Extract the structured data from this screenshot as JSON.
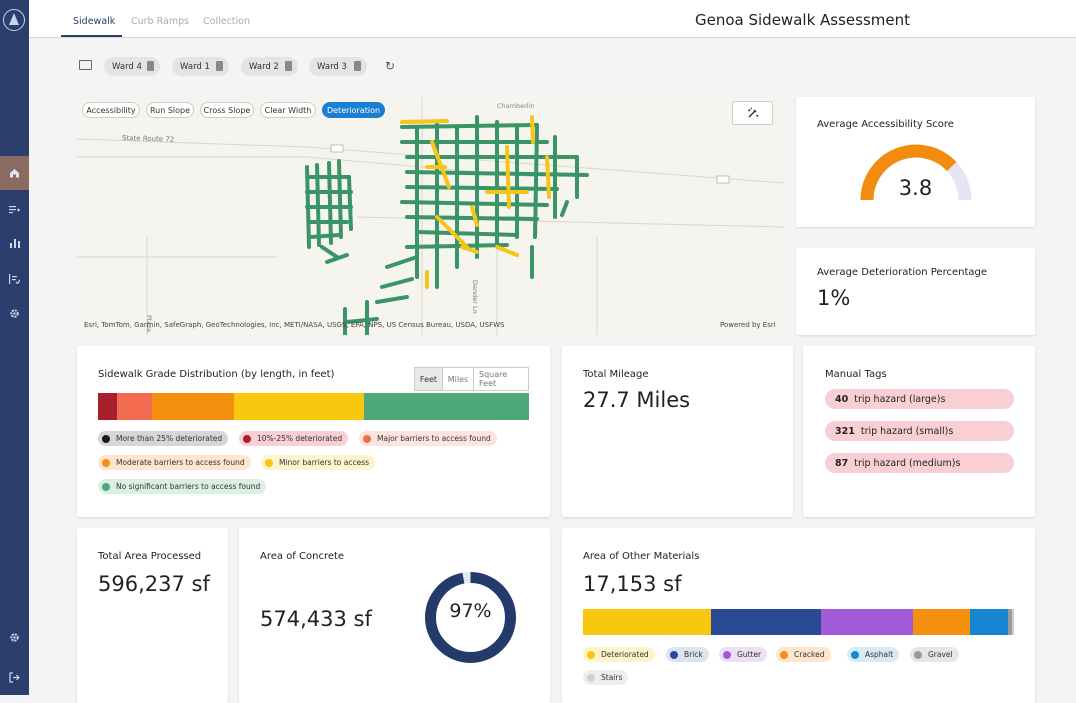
{
  "app": {
    "title": "Genoa Sidewalk Assessment"
  },
  "tabs": [
    {
      "label": "Sidewalk",
      "active": true
    },
    {
      "label": "Curb Ramps",
      "active": false
    },
    {
      "label": "Collection",
      "active": false
    }
  ],
  "sidebar": {
    "items": [
      {
        "icon": "home-icon",
        "active": true
      },
      {
        "icon": "playlist-add-icon",
        "active": false
      },
      {
        "icon": "bar-chart-icon",
        "active": false
      },
      {
        "icon": "checklist-icon",
        "active": false
      },
      {
        "icon": "settings-gear-icon",
        "active": false
      }
    ],
    "bottom": [
      {
        "icon": "settings-icon"
      },
      {
        "icon": "logout-icon"
      }
    ]
  },
  "filters": {
    "chips": [
      "Ward 4",
      "Ward 1",
      "Ward 2",
      "Ward 3"
    ]
  },
  "map": {
    "layers": [
      {
        "label": "Accessibility",
        "active": false
      },
      {
        "label": "Run Slope",
        "active": false
      },
      {
        "label": "Cross Slope",
        "active": false
      },
      {
        "label": "Clear Width",
        "active": false
      },
      {
        "label": "Deterioration",
        "active": true
      }
    ],
    "road_label": "State Route 72",
    "street_labels": [
      "Plaza",
      "Dander Ln",
      "Chamberlin"
    ],
    "attribution": "Esri, TomTom, Garmin, SafeGraph, GeoTechnologies, Inc, METI/NASA, USGS, EPA, NPS, US Census Bureau, USDA, USFWS",
    "powered_by": "Powered by Esri",
    "colors": {
      "good": "#3b9465",
      "minor": "#f5c518",
      "background": "#f6f4ef"
    }
  },
  "accessibility": {
    "label": "Average Accessibility Score",
    "value": "3.8",
    "score": 3.8,
    "max": 5,
    "color": "#f28c0f",
    "track_color": "#e4e6f5"
  },
  "deterioration": {
    "label": "Average Deterioration Percentage",
    "value": "1%"
  },
  "grade": {
    "title": "Sidewalk Grade Distribution (by length, in feet)",
    "units": [
      {
        "label": "Feet",
        "active": true
      },
      {
        "label": "Miles",
        "active": false
      },
      {
        "label": "Square Feet",
        "active": false
      }
    ],
    "segments": [
      {
        "label": "More than 25% deteriorated",
        "color": "#1a1a1a",
        "share": 0.0
      },
      {
        "label": "10%-25% deteriorated",
        "color": "#a8202c",
        "share": 0.043
      },
      {
        "label": "Major barriers to access found",
        "color": "#f26b50",
        "share": 0.083
      },
      {
        "label": "Moderate barriers to access found",
        "color": "#f5900f",
        "share": 0.19
      },
      {
        "label": "Minor barriers to access",
        "color": "#f9c80e",
        "share": 0.302
      },
      {
        "label": "No significant barriers to access found",
        "color": "#4fa878",
        "share": 0.382
      }
    ],
    "legend_backgrounds": [
      "#d6d6d6",
      "#f7d0d4",
      "#fde5df",
      "#fde6cc",
      "#fdf4cc",
      "#dcefe3"
    ]
  },
  "mileage": {
    "label": "Total Mileage",
    "value": "27.7 Miles"
  },
  "manual_tags": {
    "label": "Manual Tags",
    "items": [
      {
        "count": "40",
        "text": "trip hazard (large)s"
      },
      {
        "count": "321",
        "text": "trip hazard (small)s"
      },
      {
        "count": "87",
        "text": "trip hazard (medium)s"
      }
    ]
  },
  "total_area": {
    "label": "Total Area Processed",
    "value": "596,237 sf"
  },
  "concrete": {
    "label": "Area of Concrete",
    "value": "574,433 sf",
    "percent_label": "97%",
    "percent": 97,
    "color": "#233a6b"
  },
  "other_materials": {
    "label": "Area of Other Materials",
    "value": "17,153 sf",
    "segments": [
      {
        "label": "Deteriorated",
        "color": "#f9c80e",
        "share": 0.297
      },
      {
        "label": "Brick",
        "color": "#2a4a96",
        "share": 0.255
      },
      {
        "label": "Gutter",
        "color": "#a25ad6",
        "share": 0.213
      },
      {
        "label": "Cracked",
        "color": "#f5900f",
        "share": 0.134
      },
      {
        "label": "Asphalt",
        "color": "#1786d2",
        "share": 0.088
      },
      {
        "label": "Gravel",
        "color": "#9a9a9a",
        "share": 0.009
      },
      {
        "label": "Stairs",
        "color": "#d0d0d0",
        "share": 0.004
      }
    ],
    "legend_backgrounds": [
      "#fdf4cc",
      "#dde3f0",
      "#ece0f5",
      "#fde6cc",
      "#d8eaf7",
      "#e6e6e6",
      "#eeeeee"
    ]
  }
}
